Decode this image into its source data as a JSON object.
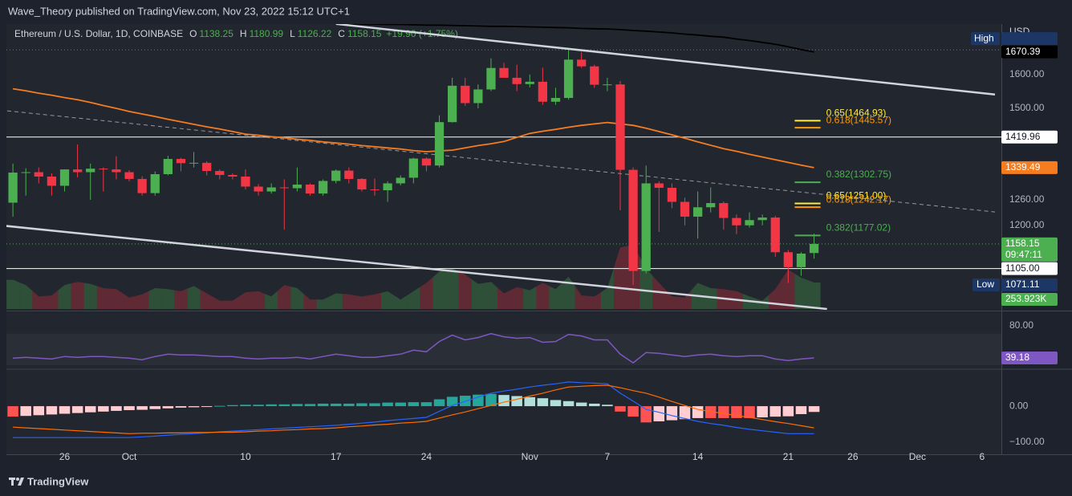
{
  "header": {
    "publisher": "Wave_Theory published on TradingView.com, Nov 23, 2022 15:12 UTC+1"
  },
  "footer": {
    "brand": "TradingView"
  },
  "chart_data": {
    "type": "candlestick",
    "title": "Ethereum / U.S. Dollar, 1D, COINBASE",
    "ohlc_keys": [
      "O",
      "H",
      "L",
      "C"
    ],
    "change": "+19.90 (+1.75%)",
    "currency": "USD",
    "countdown": "09:47:11",
    "high_text": "High",
    "low_text": "Low",
    "up_color": "#4caf50",
    "down_color": "#f23645",
    "log": true,
    "grid": false,
    "x": [
      "2022-09-22",
      "2022-09-23",
      "2022-09-24",
      "2022-09-25",
      "2022-09-26",
      "2022-09-27",
      "2022-09-28",
      "2022-09-29",
      "2022-09-30",
      "2022-10-01",
      "2022-10-02",
      "2022-10-03",
      "2022-10-04",
      "2022-10-05",
      "2022-10-06",
      "2022-10-07",
      "2022-10-08",
      "2022-10-09",
      "2022-10-10",
      "2022-10-11",
      "2022-10-12",
      "2022-10-13",
      "2022-10-14",
      "2022-10-15",
      "2022-10-16",
      "2022-10-17",
      "2022-10-18",
      "2022-10-19",
      "2022-10-20",
      "2022-10-21",
      "2022-10-22",
      "2022-10-23",
      "2022-10-24",
      "2022-10-25",
      "2022-10-26",
      "2022-10-27",
      "2022-10-28",
      "2022-10-29",
      "2022-10-30",
      "2022-10-31",
      "2022-11-01",
      "2022-11-02",
      "2022-11-03",
      "2022-11-04",
      "2022-11-05",
      "2022-11-06",
      "2022-11-07",
      "2022-11-08",
      "2022-11-09",
      "2022-11-10",
      "2022-11-11",
      "2022-11-12",
      "2022-11-13",
      "2022-11-14",
      "2022-11-15",
      "2022-11-16",
      "2022-11-17",
      "2022-11-18",
      "2022-11-19",
      "2022-11-20",
      "2022-11-21",
      "2022-11-22",
      "2022-11-23"
    ],
    "open": [
      1253,
      1327,
      1328,
      1317,
      1294,
      1335,
      1328,
      1337,
      1335,
      1328,
      1311,
      1276,
      1323,
      1362,
      1351,
      1352,
      1331,
      1321,
      1317,
      1292,
      1280,
      1290,
      1288,
      1297,
      1275,
      1306,
      1332,
      1311,
      1285,
      1283,
      1300,
      1314,
      1363,
      1345,
      1461,
      1566,
      1515,
      1555,
      1620,
      1590,
      1571,
      1578,
      1519,
      1530,
      1646,
      1625,
      1569,
      1570,
      1334,
      1100,
      1300,
      1289,
      1255,
      1220,
      1242,
      1252,
      1217,
      1200,
      1212,
      1218,
      1140,
      1108,
      1138.25
    ],
    "high": [
      1350,
      1338,
      1340,
      1325,
      1335,
      1400,
      1350,
      1340,
      1369,
      1333,
      1318,
      1330,
      1370,
      1365,
      1380,
      1356,
      1335,
      1325,
      1335,
      1298,
      1300,
      1310,
      1340,
      1300,
      1310,
      1335,
      1340,
      1313,
      1312,
      1305,
      1320,
      1365,
      1366,
      1480,
      1590,
      1590,
      1570,
      1650,
      1636,
      1630,
      1600,
      1621,
      1560,
      1677,
      1670,
      1630,
      1590,
      1580,
      1340,
      1345,
      1305,
      1300,
      1265,
      1280,
      1290,
      1256,
      1225,
      1230,
      1225,
      1222,
      1145,
      1140,
      1180.99
    ],
    "low": [
      1220,
      1270,
      1300,
      1270,
      1280,
      1315,
      1260,
      1280,
      1310,
      1305,
      1270,
      1270,
      1320,
      1330,
      1340,
      1320,
      1310,
      1310,
      1285,
      1270,
      1275,
      1190,
      1280,
      1270,
      1270,
      1300,
      1300,
      1280,
      1270,
      1255,
      1295,
      1300,
      1330,
      1340,
      1460,
      1507,
      1500,
      1550,
      1590,
      1550,
      1561,
      1510,
      1510,
      1525,
      1620,
      1560,
      1550,
      1235,
      1071.11,
      1095,
      1185,
      1240,
      1200,
      1170,
      1230,
      1190,
      1180,
      1195,
      1200,
      1130,
      1075,
      1090,
      1126.22
    ],
    "close": [
      1327,
      1328,
      1317,
      1294,
      1335,
      1328,
      1337,
      1335,
      1328,
      1311,
      1276,
      1323,
      1362,
      1351,
      1352,
      1331,
      1321,
      1317,
      1292,
      1280,
      1290,
      1288,
      1297,
      1275,
      1306,
      1332,
      1311,
      1285,
      1283,
      1300,
      1314,
      1363,
      1345,
      1461,
      1566,
      1515,
      1555,
      1620,
      1590,
      1571,
      1578,
      1519,
      1530,
      1646,
      1625,
      1569,
      1570,
      1334,
      1100,
      1300,
      1289,
      1255,
      1220,
      1242,
      1252,
      1217,
      1200,
      1212,
      1218,
      1140,
      1108,
      1137,
      1158.15
    ],
    "xlim": [
      "2022-09-21",
      "2022-12-07"
    ],
    "xticks": [
      {
        "value": "2022-09-26",
        "label": "26"
      },
      {
        "value": "2022-10-01",
        "label": "Oct"
      },
      {
        "value": "2022-10-10",
        "label": "10"
      },
      {
        "value": "2022-10-17",
        "label": "17"
      },
      {
        "value": "2022-10-24",
        "label": "24"
      },
      {
        "value": "2022-11-01",
        "label": "Nov"
      },
      {
        "value": "2022-11-07",
        "label": "7"
      },
      {
        "value": "2022-11-14",
        "label": "14"
      },
      {
        "value": "2022-11-21",
        "label": "21"
      },
      {
        "value": "2022-11-26",
        "label": "26"
      },
      {
        "value": "2022-12-01",
        "label": "Dec"
      },
      {
        "value": "2022-12-06",
        "label": "6"
      }
    ],
    "ylim": [
      1023,
      1775
    ],
    "yticks": [
      {
        "value": 1600,
        "label": "1600.00"
      },
      {
        "value": 1500,
        "label": "1500.00"
      },
      {
        "value": 1260,
        "label": "1260.00"
      },
      {
        "value": 1200,
        "label": "1200.00"
      }
    ],
    "moving_averages": [
      {
        "color": "#000000",
        "values": [
          null,
          null,
          null,
          null,
          null,
          null,
          null,
          null,
          null,
          null,
          null,
          null,
          null,
          null,
          null,
          null,
          null,
          null,
          null,
          null,
          null,
          null,
          null,
          null,
          null,
          1762,
          1762,
          1761,
          1761,
          1760,
          1760,
          1759,
          1758,
          1758,
          1757,
          1756,
          1755,
          1754,
          1754,
          1753,
          1752,
          1751,
          1750,
          1749,
          1747,
          1746,
          1745,
          1743,
          1740,
          1738,
          1735,
          1732,
          1728,
          1725,
          1721,
          1718,
          1712,
          1707,
          1701,
          1695,
          1687,
          1678,
          1670.39
        ]
      },
      {
        "color": "#f57c1f",
        "values": [
          1557,
          1551,
          1544,
          1538,
          1531,
          1525,
          1517,
          1508,
          1500,
          1491,
          1484,
          1477,
          1469,
          1462,
          1455,
          1448,
          1442,
          1435,
          1428,
          1425,
          1421,
          1418,
          1414,
          1411,
          1407,
          1404,
          1401,
          1397,
          1394,
          1391,
          1388,
          1384,
          1381,
          1383,
          1385,
          1391,
          1397,
          1402,
          1408,
          1419,
          1430,
          1436,
          1441,
          1447,
          1452,
          1456,
          1460,
          1456,
          1452,
          1444,
          1435,
          1426,
          1417,
          1407,
          1398,
          1389,
          1382,
          1374,
          1367,
          1360,
          1353,
          1346,
          1339.49
        ]
      }
    ],
    "levels": [
      {
        "value": 1419.96,
        "label": "1419.96"
      },
      {
        "value": 1105,
        "label": "1105.00"
      }
    ],
    "fib_span": [
      "2022-11-22",
      "2022-11-23"
    ],
    "fib_levels": [
      {
        "value": 1464.93,
        "label": "0.65(1464.93)",
        "color": "#ffeb3b"
      },
      {
        "value": 1445.57,
        "label": "0.618(1445.57)",
        "color": "#ff9800"
      },
      {
        "value": 1302.75,
        "label": "0.382(1302.75)",
        "color": "#4caf50"
      },
      {
        "value": 1251,
        "label": "0.65(1251.00)",
        "color": "#ffeb3b"
      },
      {
        "value": 1242.17,
        "label": "0.618(1242.17)",
        "color": "#ff9800"
      },
      {
        "value": 1177.02,
        "label": "0.382(1177.02)",
        "color": "#4caf50"
      }
    ],
    "trendlines": [
      {
        "color": "#d1d4dc",
        "dashed": false,
        "points": [
          [
            "2022-10-17",
            1762
          ],
          [
            "2022-12-07",
            1540
          ]
        ]
      },
      {
        "color": "#d1d4dc",
        "dashed": false,
        "points": [
          [
            "2022-09-21",
            1200
          ],
          [
            "2022-11-24",
            1023
          ]
        ]
      },
      {
        "color": "#9598a1",
        "dashed": true,
        "points": [
          [
            "2022-09-21",
            1495
          ],
          [
            "2022-12-07",
            1231
          ]
        ]
      }
    ],
    "volume": {
      "vlim": [
        0,
        2770
      ],
      "tag": "253.923K",
      "values": [
        280,
        230,
        120,
        130,
        230,
        260,
        240,
        200,
        190,
        110,
        140,
        200,
        190,
        170,
        220,
        150,
        80,
        80,
        160,
        170,
        120,
        230,
        200,
        90,
        90,
        150,
        140,
        120,
        140,
        170,
        90,
        170,
        250,
        360,
        390,
        330,
        240,
        260,
        150,
        210,
        180,
        250,
        190,
        310,
        130,
        120,
        200,
        590,
        616,
        390,
        250,
        120,
        110,
        250,
        200,
        190,
        170,
        120,
        80,
        190,
        377,
        300,
        253.923
      ]
    },
    "rsi": {
      "color": "#7e57c2",
      "ylim": [
        25,
        96
      ],
      "yticks": [
        {
          "value": 80,
          "label": "80.00"
        }
      ],
      "band": [
        30,
        70
      ],
      "values": [
        39,
        40,
        39,
        38,
        41,
        40,
        41,
        41,
        40,
        39,
        37,
        41,
        44,
        43,
        43,
        42,
        41,
        41,
        39,
        38,
        39,
        39,
        40,
        38,
        41,
        44,
        42,
        40,
        40,
        42,
        44,
        49,
        47,
        60,
        68,
        62,
        65,
        70,
        66,
        64,
        65,
        59,
        60,
        69,
        67,
        62,
        62,
        44,
        33,
        46,
        45,
        43,
        41,
        43,
        44,
        42,
        41,
        42,
        42,
        38,
        36,
        38,
        39.18
      ]
    },
    "macd": {
      "ylim": [
        -131,
        98
      ],
      "yticks": [
        {
          "value": 0,
          "label": "0.00"
        },
        {
          "value": -100,
          "label": "−100.00"
        }
      ],
      "macd_color": "#2962ff",
      "signal_color": "#ff6d00",
      "hist_colors": [
        "#26a69a",
        "#b2dfdb",
        "#ff5252",
        "#ffcdd2"
      ],
      "macd": [
        -87,
        -87,
        -87,
        -87,
        -87,
        -87,
        -87,
        -87,
        -87,
        -87,
        -85,
        -83,
        -80,
        -78,
        -76,
        -74,
        -71,
        -69,
        -67,
        -65,
        -63,
        -61,
        -59,
        -57,
        -55,
        -53,
        -50,
        -47,
        -44,
        -40,
        -37,
        -34,
        -31,
        -14,
        2,
        13,
        25,
        36,
        42,
        47,
        53,
        58,
        62,
        67,
        65,
        64,
        62,
        36,
        14,
        -9,
        -17,
        -26,
        -34,
        -42,
        -48,
        -53,
        -59,
        -64,
        -68,
        -72,
        -76,
        -76,
        -76
      ],
      "signal": [
        -58,
        -60,
        -62,
        -64,
        -66,
        -68,
        -70,
        -72,
        -74,
        -76,
        -75,
        -75,
        -74,
        -74,
        -73,
        -73,
        -72,
        -72,
        -71,
        -69,
        -68,
        -66,
        -65,
        -63,
        -62,
        -60,
        -57,
        -55,
        -52,
        -50,
        -47,
        -45,
        -42,
        -33,
        -24,
        -16,
        -7,
        2,
        11,
        19,
        28,
        36,
        45,
        53,
        55,
        57,
        58,
        51,
        43,
        36,
        25,
        13,
        2,
        -9,
        -15,
        -20,
        -26,
        -31,
        -37,
        -43,
        -48,
        -54,
        -60
      ],
      "hist": [
        -29,
        -27,
        -25,
        -23,
        -21,
        -19,
        -17,
        -15,
        -13,
        -11,
        -10,
        -8,
        -6,
        -4,
        -3,
        -1,
        1,
        3,
        4,
        4,
        5,
        5,
        6,
        6,
        7,
        7,
        7,
        8,
        8,
        10,
        10,
        11,
        11,
        19,
        26,
        29,
        32,
        34,
        31,
        28,
        25,
        22,
        17,
        14,
        10,
        7,
        4,
        -15,
        -29,
        -45,
        -42,
        -39,
        -36,
        -33,
        -33,
        -33,
        -33,
        -33,
        -31,
        -29,
        -28,
        -22,
        -16
      ]
    }
  }
}
